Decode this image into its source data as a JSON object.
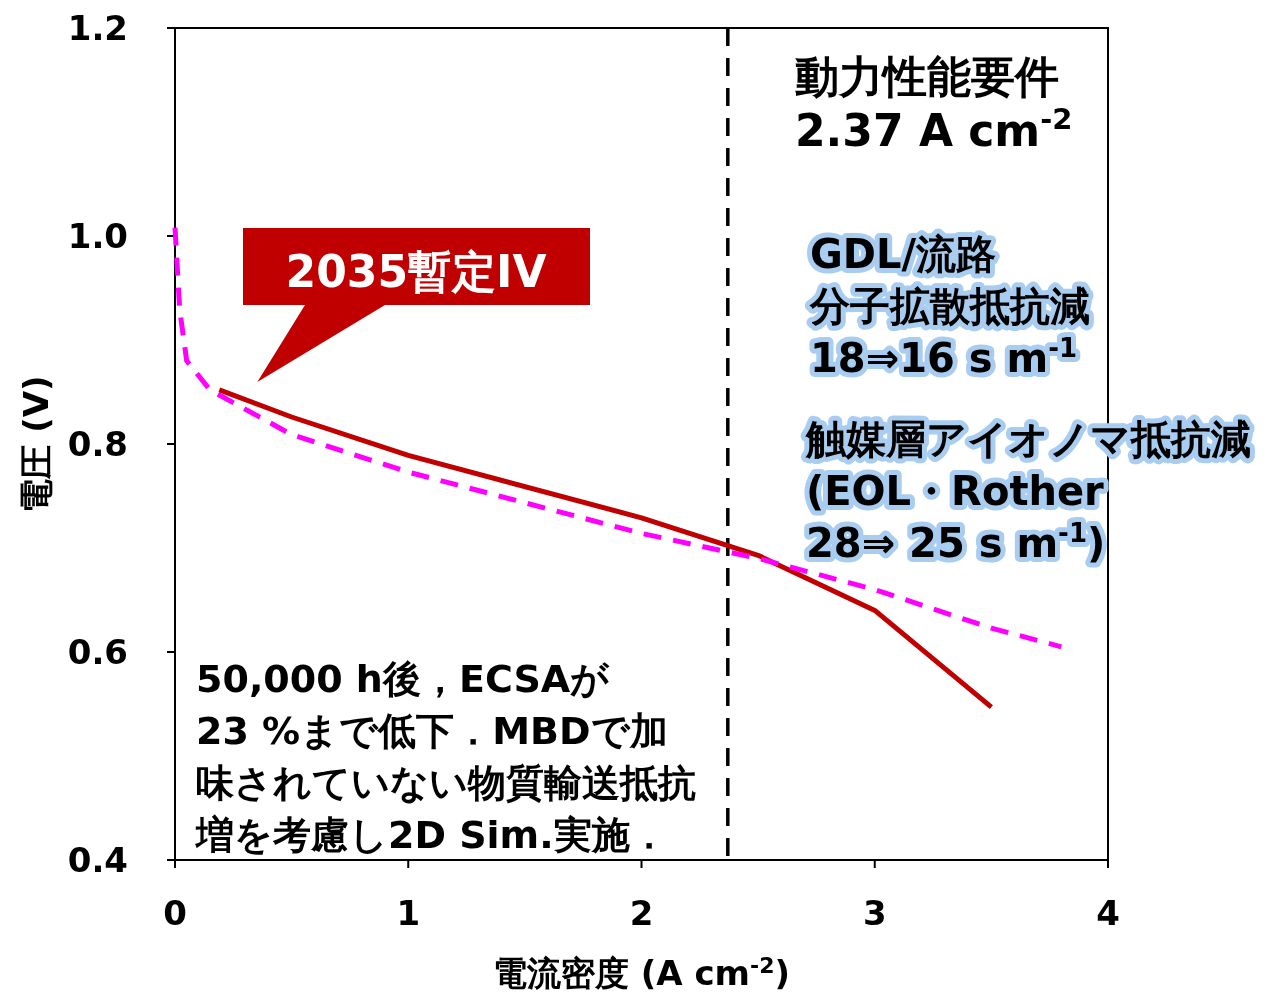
{
  "chart_data": {
    "type": "line",
    "xlabel": "電流密度 (A cm$^{-2}$)",
    "ylabel": "電圧 (V)",
    "xlim": [
      0,
      4
    ],
    "ylim": [
      0.4,
      1.2
    ],
    "xticks": [
      0,
      1,
      2,
      3,
      4
    ],
    "yticks": [
      0.4,
      0.6,
      0.8,
      {
        "value": 1,
        "label": "1.0"
      },
      1.2
    ],
    "grid": false,
    "legend": false,
    "marker": "none",
    "series": [
      {
        "name": "2035暫定IV",
        "color": "#c00000",
        "line_style": "solid",
        "x": [
          0.19,
          0.5,
          1,
          2,
          2.5,
          3,
          3.5
        ],
        "values": [
          0.852,
          0.826,
          0.789,
          0.729,
          0.693,
          0.64,
          0.547
        ]
      },
      {
        "color": "#ff00ff",
        "line_style": "dashed",
        "x": [
          0,
          0.02,
          0.05,
          0.15,
          0.5,
          1,
          2,
          2.5,
          3,
          3.5,
          3.8
        ],
        "values": [
          1.008,
          0.929,
          0.88,
          0.852,
          0.809,
          0.773,
          0.714,
          0.69,
          0.66,
          0.623,
          0.605
        ]
      }
    ],
    "ref_lines": [
      {
        "axis": "x",
        "value": 2.37,
        "label": "動力性能要件\n2.37 A cm$^{-2}$",
        "color": "#000000",
        "line_style": "dashed"
      }
    ],
    "annotations": [
      "GDL/流路",
      "分子拡散抵抗減",
      "18⇒16 s m$^{-1}$",
      "触媒層アイオノマ抵抗減",
      "(EOL・Rother",
      " 28⇒ 25 s m$^{-1}$)",
      "50,000 h後，ECSAが",
      "23 %まで低下．MBDで加",
      "味されていない物質輸送抵抗",
      "増を考慮し2D Sim.実施．"
    ]
  }
}
